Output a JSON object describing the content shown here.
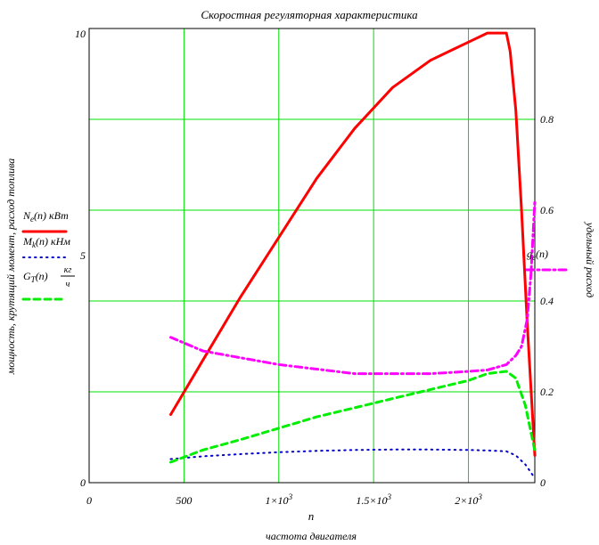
{
  "chart_data": {
    "type": "line",
    "title": "Скоростная регуляторная характеристика",
    "xlabel": "n",
    "xlabel_sub": "частота двигателя",
    "ylabel": "мощность, крутящий момент, расход топлива",
    "y2label": "удельный расход",
    "xlim": [
      0,
      2350
    ],
    "ylim": [
      0,
      10
    ],
    "y2lim": [
      0,
      1.0
    ],
    "grid": true,
    "x_ticks": [
      {
        "value": 0,
        "label": "0"
      },
      {
        "value": 500,
        "label": "500"
      },
      {
        "value": 1000,
        "label": "1×10",
        "exp": "3"
      },
      {
        "value": 1500,
        "label": "1.5×10",
        "exp": "3"
      },
      {
        "value": 2000,
        "label": "2×10",
        "exp": "3"
      }
    ],
    "y_ticks": [
      {
        "value": 0,
        "label": "0"
      },
      {
        "value": 5,
        "label": "5"
      },
      {
        "value": 10,
        "label": "10"
      }
    ],
    "y2_ticks": [
      {
        "value": 0,
        "label": "0"
      },
      {
        "value": 0.2,
        "label": "0.2"
      },
      {
        "value": 0.4,
        "label": "0.4"
      },
      {
        "value": 0.6,
        "label": "0.6"
      },
      {
        "value": 0.8,
        "label": "0.8"
      }
    ],
    "series": [
      {
        "name": "Ne(n) кВт",
        "axis": "left",
        "color": "#ff0000",
        "style": "solid",
        "x": [
          430,
          600,
          800,
          1000,
          1200,
          1400,
          1600,
          1800,
          2000,
          2100,
          2200,
          2220,
          2250,
          2280,
          2310,
          2350
        ],
        "y": [
          1.5,
          2.7,
          4.1,
          5.4,
          6.7,
          7.8,
          8.7,
          9.3,
          9.7,
          9.9,
          9.9,
          9.5,
          8.2,
          6.0,
          3.5,
          0.6
        ]
      },
      {
        "name": "Mk(n) кНм",
        "axis": "left",
        "color": "#0000cc",
        "style": "dotted",
        "x": [
          430,
          600,
          800,
          1000,
          1200,
          1400,
          1600,
          1800,
          2000,
          2100,
          2200,
          2250,
          2300,
          2350
        ],
        "y": [
          0.52,
          0.58,
          0.63,
          0.67,
          0.7,
          0.72,
          0.73,
          0.73,
          0.72,
          0.71,
          0.69,
          0.6,
          0.4,
          0.1
        ]
      },
      {
        "name": "GT(n) кг/ч",
        "axis": "left",
        "color": "#00ee00",
        "style": "dashed",
        "x": [
          430,
          600,
          800,
          1000,
          1200,
          1400,
          1600,
          1800,
          2000,
          2100,
          2200,
          2250,
          2300,
          2350
        ],
        "y": [
          0.45,
          0.72,
          0.95,
          1.2,
          1.45,
          1.65,
          1.85,
          2.05,
          2.25,
          2.4,
          2.45,
          2.3,
          1.7,
          0.7
        ]
      },
      {
        "name": "ge(n)",
        "axis": "right",
        "color": "#ff00ff",
        "style": "dashdot",
        "x": [
          430,
          600,
          800,
          1000,
          1200,
          1400,
          1600,
          1800,
          2000,
          2100,
          2200,
          2250,
          2280,
          2310,
          2330,
          2350
        ],
        "y": [
          0.32,
          0.29,
          0.275,
          0.26,
          0.25,
          0.24,
          0.24,
          0.24,
          0.245,
          0.248,
          0.26,
          0.28,
          0.3,
          0.36,
          0.46,
          0.62
        ]
      }
    ],
    "legend": {
      "placement": "left",
      "entries": [
        {
          "main": "N",
          "sub": "e",
          "rest": "(n) кВт",
          "color": "#ff0000",
          "style": "solid"
        },
        {
          "main": "M",
          "sub": "k",
          "rest": "(n) кНм",
          "color": "#0000cc",
          "style": "dotted"
        },
        {
          "main": "G",
          "sub": "T",
          "rest": "(n)",
          "frac_num": "кг",
          "frac_den": "ч",
          "color": "#00ee00",
          "style": "dashed"
        }
      ]
    },
    "legend_right": {
      "placement": "right",
      "entries": [
        {
          "main": "g",
          "sub": "e",
          "rest": "(n)",
          "color": "#ff00ff",
          "style": "dashdot"
        }
      ]
    }
  }
}
